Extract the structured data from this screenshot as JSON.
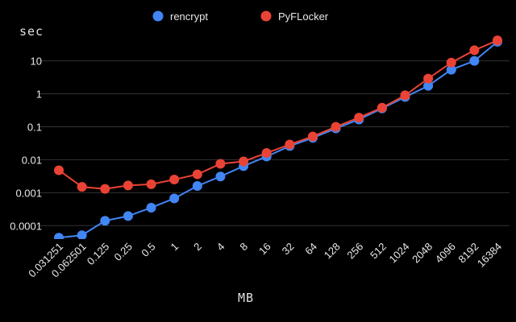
{
  "chart_data": {
    "type": "line",
    "xlabel": "MB",
    "ylabel": "sec",
    "yscale": "log",
    "ylim": [
      3.9e-05,
      56
    ],
    "grid": true,
    "legend_position": "top",
    "yticks": [
      "0.0001",
      "0.001",
      "0.01",
      "0.1",
      "1",
      "10"
    ],
    "ytick_values": [
      0.0001,
      0.001,
      0.01,
      0.1,
      1,
      10
    ],
    "categories": [
      "0.031251",
      "0.062501",
      "0.125",
      "0.25",
      "0.5",
      "1",
      "2",
      "4",
      "8",
      "16",
      "32",
      "64",
      "128",
      "256",
      "512",
      "1024",
      "2048",
      "4096",
      "8192",
      "16384"
    ],
    "series": [
      {
        "name": "rencrypt",
        "color": "#4285f4",
        "values": [
          4.3e-05,
          5.1e-05,
          0.00014,
          0.000195,
          0.00035,
          0.00067,
          0.0016,
          0.0031,
          0.0064,
          0.0125,
          0.026,
          0.046,
          0.089,
          0.166,
          0.36,
          0.8,
          1.75,
          5.4,
          10,
          38
        ]
      },
      {
        "name": "PyFLocker",
        "color": "#ea4335",
        "values": [
          0.0048,
          0.0015,
          0.0013,
          0.00166,
          0.0018,
          0.0025,
          0.0036,
          0.0075,
          0.0089,
          0.016,
          0.029,
          0.051,
          0.1,
          0.19,
          0.38,
          0.9,
          2.9,
          8.9,
          21,
          42
        ]
      }
    ]
  }
}
